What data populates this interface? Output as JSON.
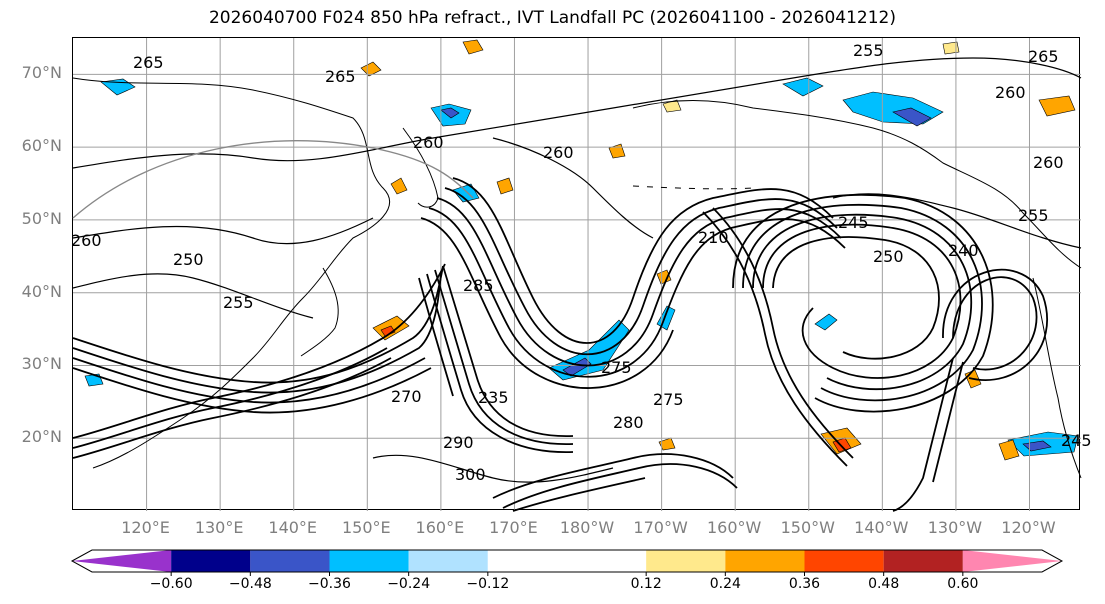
{
  "title": "2026040700 F024 850 hPa refract., IVT Landfall PC (2026041100 - 2026041212)",
  "map": {
    "lat_labels": [
      "70°N",
      "60°N",
      "50°N",
      "40°N",
      "30°N",
      "20°N"
    ],
    "lat_values": [
      70,
      60,
      50,
      40,
      30,
      20
    ],
    "lon_labels": [
      "120°E",
      "130°E",
      "140°E",
      "150°E",
      "160°E",
      "170°E",
      "180°W",
      "170°W",
      "160°W",
      "150°W",
      "140°W",
      "130°W",
      "120°W"
    ],
    "lon_values": [
      120,
      130,
      140,
      150,
      160,
      170,
      180,
      190,
      200,
      210,
      220,
      230,
      240
    ],
    "lat_range": [
      10,
      75
    ],
    "lon_range": [
      110,
      247
    ],
    "contour_labels": [
      "255",
      "265",
      "265",
      "265",
      "260",
      "260",
      "255",
      "260",
      "260",
      "245",
      "250",
      "240",
      "250",
      "260",
      "255",
      "285",
      "275",
      "275",
      "280",
      "235",
      "270",
      "290",
      "300",
      "210",
      "245"
    ],
    "label_text_color": "#000000",
    "contour_color": "#000000",
    "grid_color": "#a0a0a0",
    "coast_color": "#000000"
  },
  "colorbar": {
    "tick_labels": [
      "−0.60",
      "−0.48",
      "−0.36",
      "−0.24",
      "−0.12",
      "0.12",
      "0.24",
      "0.36",
      "0.48",
      "0.60"
    ],
    "ticks": [
      -0.6,
      -0.48,
      -0.36,
      -0.24,
      -0.12,
      0.12,
      0.24,
      0.36,
      0.48,
      0.6
    ],
    "colors": [
      "#9932cc",
      "#00008b",
      "#3a55c8",
      "#00bfff",
      "#b0e2ff",
      "#ffffff",
      "#ffe98c",
      "#ffa500",
      "#ff4500",
      "#b22222",
      "#ff86b0"
    ],
    "range": [
      -0.72,
      0.72
    ]
  }
}
